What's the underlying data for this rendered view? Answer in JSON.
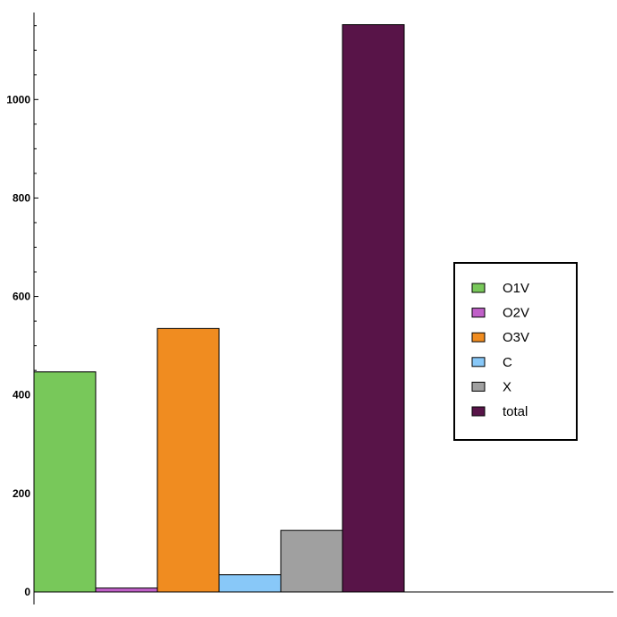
{
  "chart_data": {
    "type": "bar",
    "title": "",
    "xlabel": "",
    "ylabel": "",
    "ylim": [
      0,
      1170
    ],
    "y_ticks": [
      "0",
      "200",
      "400",
      "600",
      "800",
      "1000"
    ],
    "y_tick_values": [
      0,
      200,
      400,
      600,
      800,
      1000
    ],
    "grid": false,
    "legend_position": "right",
    "bars": [
      {
        "name": "O1V",
        "value": 447,
        "color": "#78C85A"
      },
      {
        "name": "O2V",
        "value": 8,
        "color": "#C060C8"
      },
      {
        "name": "O3V",
        "value": 535,
        "color": "#F08C20"
      },
      {
        "name": "C",
        "value": 35,
        "color": "#88C8F8"
      },
      {
        "name": "X",
        "value": 125,
        "color": "#A0A0A0"
      },
      {
        "name": "total",
        "value": 1152,
        "color": "#581448"
      }
    ]
  }
}
